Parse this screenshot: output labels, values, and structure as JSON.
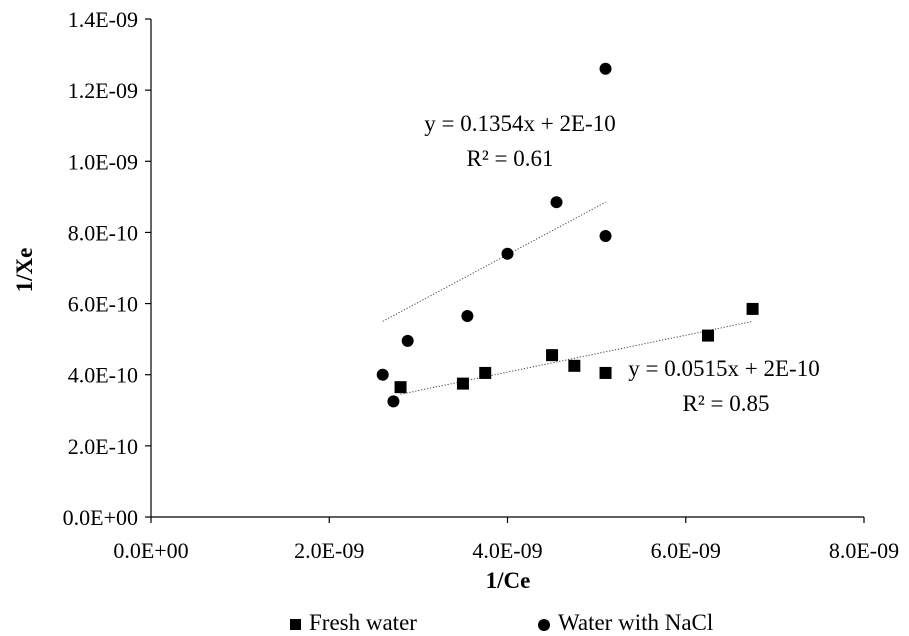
{
  "chart_data": {
    "type": "scatter",
    "xlabel": "1/Ce",
    "ylabel": "1/Xe",
    "xlim": [
      0,
      8e-09
    ],
    "ylim": [
      0,
      1.4e-09
    ],
    "x_ticks": [
      0,
      2e-09,
      4e-09,
      6e-09,
      8e-09
    ],
    "x_tick_labels": [
      "0.0E+00",
      "2.0E-09",
      "4.0E-09",
      "6.0E-09",
      "8.0E-09"
    ],
    "y_ticks": [
      0,
      2e-10,
      4e-10,
      6e-10,
      8e-10,
      1e-09,
      1.2e-09,
      1.4e-09
    ],
    "y_tick_labels": [
      "0.0E+00",
      "2.0E-10",
      "4.0E-10",
      "6.0E-10",
      "8.0E-10",
      "1.0E-09",
      "1.2E-09",
      "1.4E-09"
    ],
    "grid": false,
    "legend_position": "bottom",
    "series": [
      {
        "name": "Fresh water",
        "marker": "square",
        "color": "#000000",
        "x": [
          2.8e-09,
          3.5e-09,
          3.75e-09,
          4.5e-09,
          4.75e-09,
          5.1e-09,
          6.25e-09,
          6.75e-09
        ],
        "y": [
          3.65e-10,
          3.75e-10,
          4.05e-10,
          4.55e-10,
          4.25e-10,
          4.05e-10,
          5.1e-10,
          5.85e-10
        ],
        "trendline": {
          "x_range": [
            2.8e-09,
            6.75e-09
          ],
          "y_range": [
            3.45e-10,
            5.5e-10
          ],
          "equation": "y = 0.0515x + 2E-10",
          "r2": "R² = 0.85"
        }
      },
      {
        "name": "Water with NaCl",
        "marker": "circle",
        "color": "#000000",
        "x": [
          2.6e-09,
          2.72e-09,
          2.88e-09,
          3.55e-09,
          4e-09,
          4.55e-09,
          5.1e-09,
          5.1e-09
        ],
        "y": [
          4e-10,
          3.25e-10,
          4.95e-10,
          5.65e-10,
          7.4e-10,
          8.85e-10,
          7.9e-10,
          1.26e-09
        ],
        "trendline": {
          "x_range": [
            2.6e-09,
            5.1e-09
          ],
          "y_range": [
            5.5e-10,
            8.85e-10
          ],
          "equation": "y = 0.1354x + 2E-10",
          "r2": "R² = 0.61"
        }
      }
    ]
  }
}
